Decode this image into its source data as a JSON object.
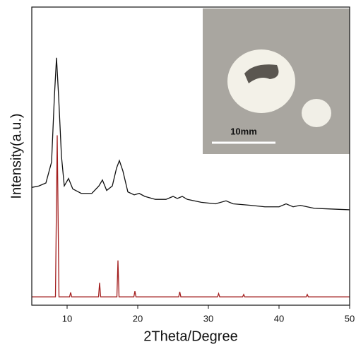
{
  "chart_data": {
    "type": "line",
    "xlabel": "2Theta/Degree",
    "ylabel": "Intensity(a.u.)",
    "xlim": [
      5,
      50
    ],
    "xticks": [
      10,
      20,
      30,
      40,
      50
    ],
    "ylim": [
      0,
      100
    ],
    "inset_label": "10mm",
    "series": [
      {
        "color": "#111111",
        "x": [
          5,
          6,
          7,
          7.8,
          8.2,
          8.5,
          8.8,
          9.2,
          9.6,
          10.2,
          10.8,
          12,
          13.5,
          14.5,
          15,
          15.6,
          16.4,
          17,
          17.4,
          17.9,
          18.6,
          19.5,
          20.2,
          21,
          22.5,
          24,
          25,
          25.6,
          26.3,
          27,
          29,
          31,
          32.5,
          33.5,
          36,
          38,
          40,
          41,
          42,
          43,
          45,
          47,
          50
        ],
        "values": [
          39.5,
          40,
          41,
          48,
          70,
          83,
          70,
          50,
          40,
          42.5,
          39,
          37.5,
          37.5,
          40,
          42,
          38.5,
          40,
          46,
          48.5,
          45,
          38,
          37,
          37.5,
          36.5,
          35.5,
          35.5,
          36.5,
          35.8,
          36.5,
          35.5,
          34.5,
          34,
          35,
          34,
          33.5,
          33,
          33,
          34,
          33,
          33.5,
          32.5,
          32.3,
          32
        ]
      },
      {
        "color": "#a31f1f",
        "x": [
          5,
          8.35,
          8.6,
          8.85,
          10.35,
          10.5,
          10.65,
          14.45,
          14.6,
          14.75,
          17.05,
          17.2,
          17.35,
          19.45,
          19.6,
          19.75,
          25.8,
          25.95,
          26.1,
          31.3,
          31.45,
          31.6,
          34.85,
          35,
          35.15,
          43.85,
          44,
          44.15,
          50
        ],
        "values": [
          2.8,
          2.8,
          57,
          2.8,
          2.8,
          4.3,
          2.8,
          2.8,
          7.5,
          2.8,
          2.8,
          15,
          2.8,
          2.8,
          4.7,
          2.8,
          2.8,
          4.5,
          2.8,
          2.8,
          3.9,
          2.8,
          2.8,
          3.6,
          2.8,
          2.8,
          3.6,
          2.8,
          2.8
        ]
      }
    ]
  }
}
